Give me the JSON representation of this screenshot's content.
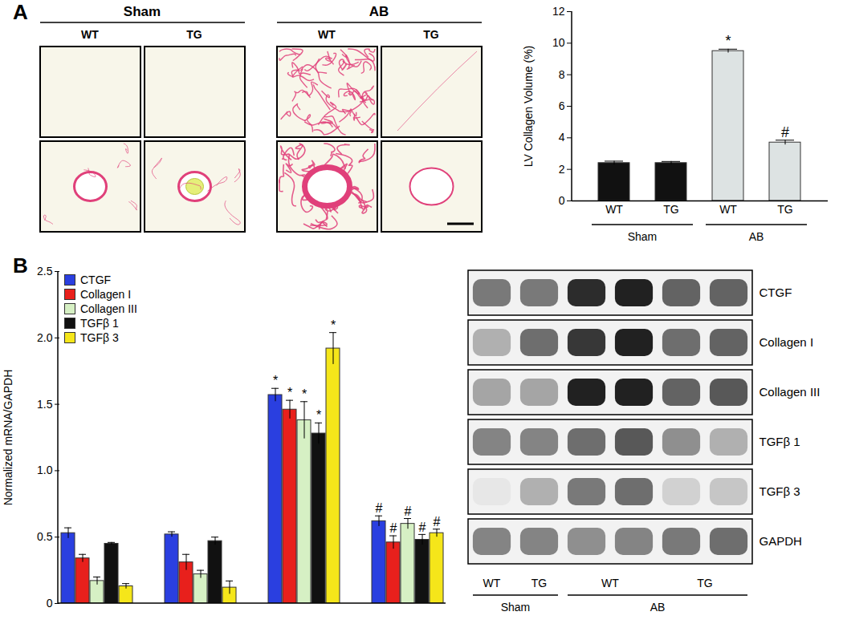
{
  "panel_labels": [
    "A",
    "B"
  ],
  "micrographs": {
    "groups": [
      {
        "label": "Sham",
        "columns": [
          "WT",
          "TG"
        ]
      },
      {
        "label": "AB",
        "columns": [
          "WT",
          "TG"
        ]
      }
    ]
  },
  "chart_data": [
    {
      "type": "bar",
      "categories": [
        "WT",
        "TG",
        "WT",
        "TG"
      ],
      "groups": [
        "Sham",
        "Sham",
        "AB",
        "AB"
      ],
      "values": [
        2.4,
        2.4,
        9.5,
        3.7
      ],
      "errors": [
        0.12,
        0.1,
        0.12,
        0.15
      ],
      "annotations": [
        null,
        null,
        "*",
        "#"
      ],
      "colors": [
        "#111111",
        "#111111",
        "#dde3e3",
        "#dde3e3"
      ],
      "y_label": "LV Collagen Volume (%)",
      "ylim": [
        0,
        12
      ],
      "yticks": [
        0,
        2,
        4,
        6,
        8,
        10,
        12
      ]
    },
    {
      "type": "bar",
      "categories": [
        null,
        null,
        null,
        null
      ],
      "series": [
        {
          "name": "CTGF",
          "color": "#2a3fe0",
          "values": [
            0.53,
            0.52,
            1.57,
            0.62
          ],
          "errors": [
            0.04,
            0.02,
            0.05,
            0.04
          ],
          "annotations": [
            null,
            null,
            "*",
            "#"
          ]
        },
        {
          "name": "Collagen I",
          "color": "#e8201c",
          "values": [
            0.34,
            0.31,
            1.46,
            0.46
          ],
          "errors": [
            0.03,
            0.06,
            0.07,
            0.05
          ],
          "annotations": [
            null,
            null,
            "*",
            "#"
          ]
        },
        {
          "name": "Collagen III",
          "color": "#d6f0c4",
          "values": [
            0.17,
            0.22,
            1.38,
            0.6
          ],
          "errors": [
            0.03,
            0.03,
            0.14,
            0.04
          ],
          "annotations": [
            null,
            null,
            "*",
            "#"
          ]
        },
        {
          "name": "TGFβ 1",
          "color": "#111111",
          "values": [
            0.45,
            0.47,
            1.28,
            0.48
          ],
          "errors": [
            0.01,
            0.03,
            0.08,
            0.04
          ],
          "annotations": [
            null,
            null,
            "*",
            "#"
          ]
        },
        {
          "name": "TGFβ 3",
          "color": "#f5e61a",
          "values": [
            0.13,
            0.12,
            1.92,
            0.53
          ],
          "errors": [
            0.02,
            0.05,
            0.12,
            0.03
          ],
          "annotations": [
            null,
            null,
            "*",
            "#"
          ]
        }
      ],
      "y_label": "Normalized mRNA/GAPDH",
      "ylim": [
        0,
        2.5
      ],
      "yticks": [
        0,
        0.5,
        {
          "value": 1,
          "label": "1.0"
        },
        1.5,
        {
          "value": 2,
          "label": "2.0"
        },
        2.5
      ],
      "legend": "top-left"
    }
  ],
  "blot": {
    "rows": [
      {
        "label": "CTGF",
        "intensity": [
          0.55,
          0.55,
          0.9,
          0.95,
          0.65,
          0.65
        ]
      },
      {
        "label": "Collagen I",
        "intensity": [
          0.3,
          0.6,
          0.85,
          0.95,
          0.6,
          0.65
        ]
      },
      {
        "label": "Collagen III",
        "intensity": [
          0.35,
          0.35,
          0.95,
          0.95,
          0.65,
          0.7
        ]
      },
      {
        "label": "TGFβ 1",
        "intensity": [
          0.5,
          0.5,
          0.6,
          0.7,
          0.45,
          0.3
        ]
      },
      {
        "label": "TGFβ 3",
        "intensity": [
          0.05,
          0.3,
          0.55,
          0.6,
          0.15,
          0.2
        ]
      },
      {
        "label": "GAPDH",
        "intensity": [
          0.5,
          0.5,
          0.45,
          0.5,
          0.55,
          0.6
        ]
      }
    ],
    "lane_labels": [
      {
        "label": "WT",
        "lanes": 1
      },
      {
        "label": "TG",
        "lanes": 1
      },
      {
        "label": "WT",
        "lanes": 2
      },
      {
        "label": "TG",
        "lanes": 2
      }
    ],
    "groups": [
      {
        "label": "Sham",
        "lanes": 2
      },
      {
        "label": "AB",
        "lanes": 4
      }
    ]
  }
}
